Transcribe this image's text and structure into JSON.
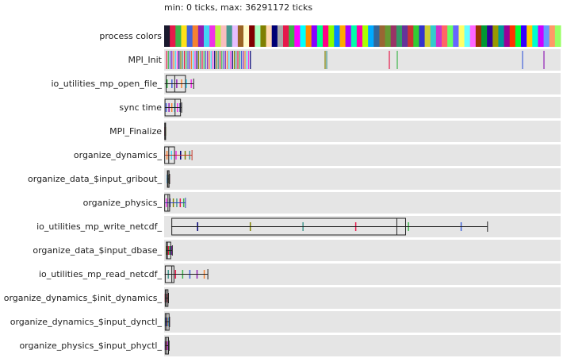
{
  "header": {
    "text": "min: 0 ticks, max: 36291172 ticks"
  },
  "colors_row_label": "process colors",
  "process_colors": [
    "#1a1a2e",
    "#e6194b",
    "#3cb44b",
    "#ffe119",
    "#4363d8",
    "#f58231",
    "#911eb4",
    "#42d4f4",
    "#f032e6",
    "#bfef45",
    "#fabebe",
    "#469990",
    "#e6beff",
    "#9a6324",
    "#fffac8",
    "#800000",
    "#aaffc3",
    "#808000",
    "#ffd8b1",
    "#000075",
    "#a9a9a9",
    "#e6194b",
    "#3cb44b",
    "#ff00ff",
    "#00ffff",
    "#ff8800",
    "#8800ff",
    "#00ff88",
    "#ff0088",
    "#88ff00",
    "#0088ff",
    "#ffaa00",
    "#aa00ff",
    "#00ffaa",
    "#ff00aa",
    "#aaff00",
    "#00aaff",
    "#336699",
    "#996633",
    "#669933",
    "#993366",
    "#339966",
    "#663399",
    "#cc3333",
    "#33cc33",
    "#3333cc",
    "#cccc33",
    "#33cccc",
    "#cc33cc",
    "#ff6666",
    "#66ff66",
    "#6666ff",
    "#ffff66",
    "#66ffff",
    "#ff66ff",
    "#993300",
    "#009933",
    "#330099",
    "#999900",
    "#009999",
    "#990099",
    "#ff3300",
    "#00ff33",
    "#3300ff",
    "#ffcc00",
    "#00ffcc",
    "#cc00ff",
    "#6699ff",
    "#ff9966",
    "#99ff66"
  ],
  "chart_data": {
    "type": "boxplot",
    "xlim": [
      0,
      36291172
    ],
    "x_unit": "ticks",
    "series": [
      {
        "label": "MPI_Init",
        "kind": "ticks"
      },
      {
        "label": "io_utilities_mp_open_file_",
        "box": [
          180000,
          970000,
          1950000
        ],
        "whisker": [
          50000,
          2700000
        ]
      },
      {
        "label": "sync time",
        "box": [
          80000,
          1000000,
          1500000
        ],
        "whisker": [
          60000,
          1600000
        ]
      },
      {
        "label": "MPI_Finalize",
        "box": [
          60000,
          60000,
          80000
        ],
        "whisker": [
          60000,
          80000
        ]
      },
      {
        "label": "organize_dynamics_",
        "box": [
          50000,
          420000,
          950000
        ],
        "whisker": [
          50000,
          2550000
        ]
      },
      {
        "label": "organize_data_$input_gribout_",
        "box": [
          300000,
          350000,
          450000
        ],
        "whisker": [
          250000,
          500000
        ]
      },
      {
        "label": "organize_physics_",
        "box": [
          50000,
          350000,
          500000
        ],
        "whisker": [
          50000,
          1950000
        ]
      },
      {
        "label": "io_utilities_mp_write_netcdf_",
        "box": [
          700000,
          21300000,
          22100000
        ],
        "whisker": [
          650000,
          29600000
        ]
      },
      {
        "label": "organize_data_$input_dbase_",
        "box": [
          200000,
          300000,
          600000
        ],
        "whisker": [
          150000,
          750000
        ]
      },
      {
        "label": "io_utilities_mp_read_netcdf_",
        "box": [
          100000,
          700000,
          900000
        ],
        "whisker": [
          50000,
          4000000
        ]
      },
      {
        "label": "organize_dynamics_$init_dynamics_",
        "box": [
          100000,
          200000,
          350000
        ],
        "whisker": [
          80000,
          400000
        ]
      },
      {
        "label": "organize_dynamics_$input_dynctl_",
        "box": [
          100000,
          250000,
          450000
        ],
        "whisker": [
          80000,
          500000
        ]
      },
      {
        "label": "organize_physics_$input_phyctl_",
        "box": [
          100000,
          250000,
          400000
        ],
        "whisker": [
          80000,
          450000
        ]
      }
    ]
  }
}
